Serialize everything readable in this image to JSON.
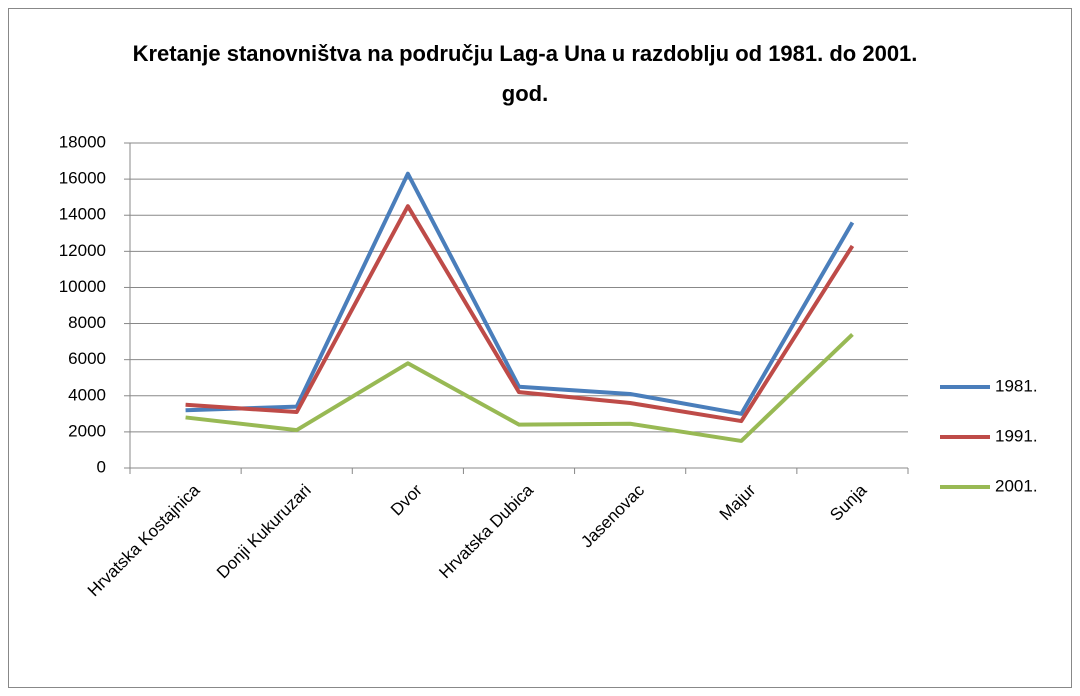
{
  "chart_data": {
    "type": "line",
    "title": "Kretanje stanovništva na području Lag-a Una u razdoblju od 1981. do 2001. god.",
    "categories": [
      "Hrvatska Kostajnica",
      "Donji Kukuruzari",
      "Dvor",
      "Hrvatska Dubica",
      "Jasenovac",
      "Majur",
      "Sunja"
    ],
    "series": [
      {
        "name": "1981.",
        "color": "#4a7ebb",
        "values": [
          3200,
          3400,
          16300,
          4500,
          4100,
          3000,
          13600
        ]
      },
      {
        "name": "1991.",
        "color": "#be4b48",
        "values": [
          3500,
          3100,
          14500,
          4200,
          3600,
          2600,
          12300
        ]
      },
      {
        "name": "2001.",
        "color": "#98b954",
        "values": [
          2800,
          2100,
          5800,
          2400,
          2450,
          1500,
          7400
        ]
      }
    ],
    "ylim": [
      0,
      18000
    ],
    "yticks": [
      0,
      2000,
      4000,
      6000,
      8000,
      10000,
      12000,
      14000,
      16000,
      18000
    ],
    "grid": true,
    "legend": "right"
  }
}
